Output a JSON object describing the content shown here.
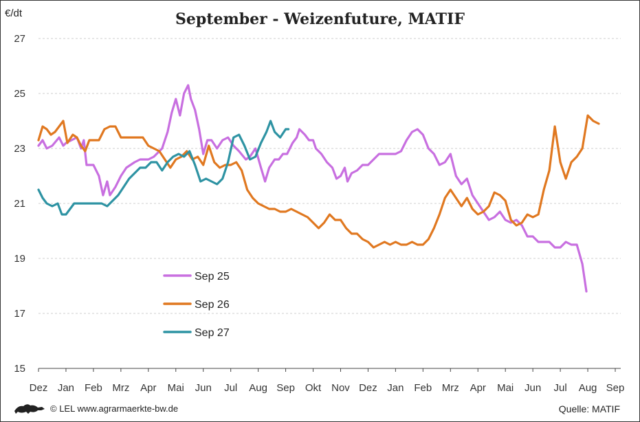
{
  "chart_data": {
    "type": "line",
    "title": "September - Weizenfuture, MATIF",
    "ylabel": "€/dt",
    "ylim": [
      15,
      27
    ],
    "yticks": [
      15,
      17,
      19,
      21,
      23,
      25,
      27
    ],
    "xlabels": [
      "Dez",
      "Jan",
      "Feb",
      "Mrz",
      "Apr",
      "Mai",
      "Jun",
      "Jul",
      "Aug",
      "Sep",
      "Okt",
      "Nov",
      "Dez",
      "Jan",
      "Feb",
      "Mrz",
      "Apr",
      "Mai",
      "Jun",
      "Jul",
      "Aug",
      "Sep"
    ],
    "grid": true,
    "legend_position": "left",
    "series": [
      {
        "name": "Sep 25",
        "color": "#c86fe0",
        "points": [
          [
            0,
            23.1
          ],
          [
            0.15,
            23.3
          ],
          [
            0.3,
            23.0
          ],
          [
            0.5,
            23.1
          ],
          [
            0.75,
            23.4
          ],
          [
            0.9,
            23.1
          ],
          [
            1.0,
            23.2
          ],
          [
            1.2,
            23.3
          ],
          [
            1.4,
            23.4
          ],
          [
            1.55,
            23.0
          ],
          [
            1.65,
            23.3
          ],
          [
            1.75,
            22.4
          ],
          [
            2.0,
            22.4
          ],
          [
            2.2,
            22.0
          ],
          [
            2.35,
            21.3
          ],
          [
            2.5,
            21.8
          ],
          [
            2.6,
            21.3
          ],
          [
            2.8,
            21.6
          ],
          [
            3.0,
            22.0
          ],
          [
            3.2,
            22.3
          ],
          [
            3.5,
            22.5
          ],
          [
            3.7,
            22.6
          ],
          [
            4.0,
            22.6
          ],
          [
            4.2,
            22.7
          ],
          [
            4.5,
            23.0
          ],
          [
            4.7,
            23.6
          ],
          [
            4.85,
            24.3
          ],
          [
            5.0,
            24.8
          ],
          [
            5.15,
            24.2
          ],
          [
            5.3,
            25.0
          ],
          [
            5.45,
            25.3
          ],
          [
            5.55,
            24.8
          ],
          [
            5.7,
            24.4
          ],
          [
            5.85,
            23.7
          ],
          [
            6.0,
            22.8
          ],
          [
            6.15,
            23.3
          ],
          [
            6.3,
            23.3
          ],
          [
            6.5,
            23.0
          ],
          [
            6.7,
            23.3
          ],
          [
            6.9,
            23.4
          ],
          [
            7.1,
            23.1
          ],
          [
            7.3,
            22.9
          ],
          [
            7.55,
            22.6
          ],
          [
            7.7,
            22.7
          ],
          [
            7.9,
            23.0
          ],
          [
            8.1,
            22.3
          ],
          [
            8.25,
            21.8
          ],
          [
            8.4,
            22.3
          ],
          [
            8.6,
            22.6
          ],
          [
            8.75,
            22.6
          ],
          [
            8.9,
            22.8
          ],
          [
            9.05,
            22.8
          ],
          [
            9.25,
            23.2
          ],
          [
            9.4,
            23.4
          ],
          [
            9.5,
            23.7
          ],
          [
            9.7,
            23.5
          ],
          [
            9.85,
            23.3
          ],
          [
            10.0,
            23.3
          ],
          [
            10.1,
            23.0
          ],
          [
            10.3,
            22.8
          ],
          [
            10.5,
            22.5
          ],
          [
            10.7,
            22.3
          ],
          [
            10.85,
            21.9
          ],
          [
            11.0,
            22.0
          ],
          [
            11.15,
            22.3
          ],
          [
            11.25,
            21.8
          ],
          [
            11.4,
            22.1
          ],
          [
            11.6,
            22.2
          ],
          [
            11.8,
            22.4
          ],
          [
            12.0,
            22.4
          ],
          [
            12.2,
            22.6
          ],
          [
            12.4,
            22.8
          ],
          [
            12.6,
            22.8
          ],
          [
            12.8,
            22.8
          ],
          [
            13.0,
            22.8
          ],
          [
            13.2,
            22.9
          ],
          [
            13.4,
            23.3
          ],
          [
            13.6,
            23.6
          ],
          [
            13.8,
            23.7
          ],
          [
            14.0,
            23.5
          ],
          [
            14.2,
            23.0
          ],
          [
            14.4,
            22.8
          ],
          [
            14.6,
            22.4
          ],
          [
            14.8,
            22.5
          ],
          [
            15.0,
            22.8
          ],
          [
            15.2,
            22.0
          ],
          [
            15.4,
            21.7
          ],
          [
            15.6,
            21.9
          ],
          [
            15.8,
            21.3
          ],
          [
            16.0,
            21.0
          ],
          [
            16.2,
            20.7
          ],
          [
            16.4,
            20.4
          ],
          [
            16.6,
            20.5
          ],
          [
            16.8,
            20.7
          ],
          [
            17.0,
            20.4
          ],
          [
            17.2,
            20.3
          ],
          [
            17.4,
            20.4
          ],
          [
            17.6,
            20.2
          ],
          [
            17.8,
            19.8
          ],
          [
            18.0,
            19.8
          ],
          [
            18.2,
            19.6
          ],
          [
            18.4,
            19.6
          ],
          [
            18.6,
            19.6
          ],
          [
            18.8,
            19.4
          ],
          [
            19.0,
            19.4
          ],
          [
            19.2,
            19.6
          ],
          [
            19.4,
            19.5
          ],
          [
            19.6,
            19.5
          ],
          [
            19.8,
            18.8
          ],
          [
            19.95,
            17.8
          ]
        ]
      },
      {
        "name": "Sep 26",
        "color": "#e07820",
        "points": [
          [
            0,
            23.3
          ],
          [
            0.15,
            23.8
          ],
          [
            0.3,
            23.7
          ],
          [
            0.45,
            23.5
          ],
          [
            0.6,
            23.6
          ],
          [
            0.75,
            23.8
          ],
          [
            0.9,
            24.0
          ],
          [
            1.05,
            23.2
          ],
          [
            1.25,
            23.5
          ],
          [
            1.4,
            23.4
          ],
          [
            1.55,
            23.1
          ],
          [
            1.7,
            22.9
          ],
          [
            1.85,
            23.3
          ],
          [
            2.0,
            23.3
          ],
          [
            2.2,
            23.3
          ],
          [
            2.4,
            23.7
          ],
          [
            2.6,
            23.8
          ],
          [
            2.8,
            23.8
          ],
          [
            3.0,
            23.4
          ],
          [
            3.2,
            23.4
          ],
          [
            3.4,
            23.4
          ],
          [
            3.6,
            23.4
          ],
          [
            3.8,
            23.4
          ],
          [
            4.0,
            23.1
          ],
          [
            4.2,
            23.0
          ],
          [
            4.4,
            22.9
          ],
          [
            4.6,
            22.6
          ],
          [
            4.8,
            22.3
          ],
          [
            5.0,
            22.6
          ],
          [
            5.2,
            22.7
          ],
          [
            5.4,
            22.9
          ],
          [
            5.6,
            22.6
          ],
          [
            5.8,
            22.7
          ],
          [
            6.0,
            22.4
          ],
          [
            6.2,
            23.1
          ],
          [
            6.4,
            22.5
          ],
          [
            6.6,
            22.3
          ],
          [
            6.8,
            22.4
          ],
          [
            7.0,
            22.4
          ],
          [
            7.2,
            22.5
          ],
          [
            7.4,
            22.2
          ],
          [
            7.6,
            21.5
          ],
          [
            7.8,
            21.2
          ],
          [
            8.0,
            21.0
          ],
          [
            8.2,
            20.9
          ],
          [
            8.4,
            20.8
          ],
          [
            8.6,
            20.8
          ],
          [
            8.8,
            20.7
          ],
          [
            9.0,
            20.7
          ],
          [
            9.2,
            20.8
          ],
          [
            9.4,
            20.7
          ],
          [
            9.6,
            20.6
          ],
          [
            9.8,
            20.5
          ],
          [
            10.0,
            20.3
          ],
          [
            10.2,
            20.1
          ],
          [
            10.4,
            20.3
          ],
          [
            10.6,
            20.6
          ],
          [
            10.8,
            20.4
          ],
          [
            11.0,
            20.4
          ],
          [
            11.2,
            20.1
          ],
          [
            11.4,
            19.9
          ],
          [
            11.6,
            19.9
          ],
          [
            11.8,
            19.7
          ],
          [
            12.0,
            19.6
          ],
          [
            12.2,
            19.4
          ],
          [
            12.4,
            19.5
          ],
          [
            12.6,
            19.6
          ],
          [
            12.8,
            19.5
          ],
          [
            13.0,
            19.6
          ],
          [
            13.2,
            19.5
          ],
          [
            13.4,
            19.5
          ],
          [
            13.6,
            19.6
          ],
          [
            13.8,
            19.5
          ],
          [
            14.0,
            19.5
          ],
          [
            14.2,
            19.7
          ],
          [
            14.4,
            20.1
          ],
          [
            14.6,
            20.6
          ],
          [
            14.8,
            21.2
          ],
          [
            15.0,
            21.5
          ],
          [
            15.2,
            21.2
          ],
          [
            15.4,
            20.9
          ],
          [
            15.6,
            21.2
          ],
          [
            15.8,
            20.8
          ],
          [
            16.0,
            20.6
          ],
          [
            16.2,
            20.7
          ],
          [
            16.4,
            20.9
          ],
          [
            16.6,
            21.4
          ],
          [
            16.8,
            21.3
          ],
          [
            17.0,
            21.1
          ],
          [
            17.2,
            20.4
          ],
          [
            17.4,
            20.2
          ],
          [
            17.6,
            20.3
          ],
          [
            17.8,
            20.6
          ],
          [
            18.0,
            20.5
          ],
          [
            18.2,
            20.6
          ],
          [
            18.4,
            21.5
          ],
          [
            18.6,
            22.2
          ],
          [
            18.8,
            23.8
          ],
          [
            19.0,
            22.5
          ],
          [
            19.2,
            21.9
          ],
          [
            19.4,
            22.5
          ],
          [
            19.6,
            22.7
          ],
          [
            19.8,
            23.0
          ],
          [
            20.0,
            24.2
          ],
          [
            20.2,
            24.0
          ],
          [
            20.4,
            23.9
          ]
        ]
      },
      {
        "name": "Sep 27",
        "color": "#2e93a3",
        "points": [
          [
            0,
            21.5
          ],
          [
            0.15,
            21.2
          ],
          [
            0.3,
            21.0
          ],
          [
            0.5,
            20.9
          ],
          [
            0.7,
            21.0
          ],
          [
            0.85,
            20.6
          ],
          [
            1.0,
            20.6
          ],
          [
            1.15,
            20.8
          ],
          [
            1.3,
            21.0
          ],
          [
            1.5,
            21.0
          ],
          [
            1.7,
            21.0
          ],
          [
            1.9,
            21.0
          ],
          [
            2.1,
            21.0
          ],
          [
            2.3,
            21.0
          ],
          [
            2.5,
            20.9
          ],
          [
            2.7,
            21.1
          ],
          [
            2.9,
            21.3
          ],
          [
            3.1,
            21.6
          ],
          [
            3.3,
            21.9
          ],
          [
            3.5,
            22.1
          ],
          [
            3.7,
            22.3
          ],
          [
            3.9,
            22.3
          ],
          [
            4.1,
            22.5
          ],
          [
            4.3,
            22.5
          ],
          [
            4.5,
            22.2
          ],
          [
            4.7,
            22.5
          ],
          [
            4.9,
            22.7
          ],
          [
            5.1,
            22.8
          ],
          [
            5.3,
            22.7
          ],
          [
            5.5,
            22.9
          ],
          [
            5.7,
            22.4
          ],
          [
            5.9,
            21.8
          ],
          [
            6.1,
            21.9
          ],
          [
            6.3,
            21.8
          ],
          [
            6.5,
            21.7
          ],
          [
            6.7,
            21.9
          ],
          [
            6.9,
            22.5
          ],
          [
            7.1,
            23.4
          ],
          [
            7.3,
            23.5
          ],
          [
            7.5,
            23.1
          ],
          [
            7.7,
            22.6
          ],
          [
            7.9,
            22.7
          ],
          [
            8.1,
            23.2
          ],
          [
            8.3,
            23.6
          ],
          [
            8.45,
            24.0
          ],
          [
            8.6,
            23.6
          ],
          [
            8.8,
            23.4
          ],
          [
            9.0,
            23.7
          ],
          [
            9.1,
            23.7
          ]
        ]
      }
    ]
  },
  "credit": "© LEL www.agrarmaerkte-bw.de",
  "source": "Quelle:  MATIF",
  "logo": "lion-logo"
}
